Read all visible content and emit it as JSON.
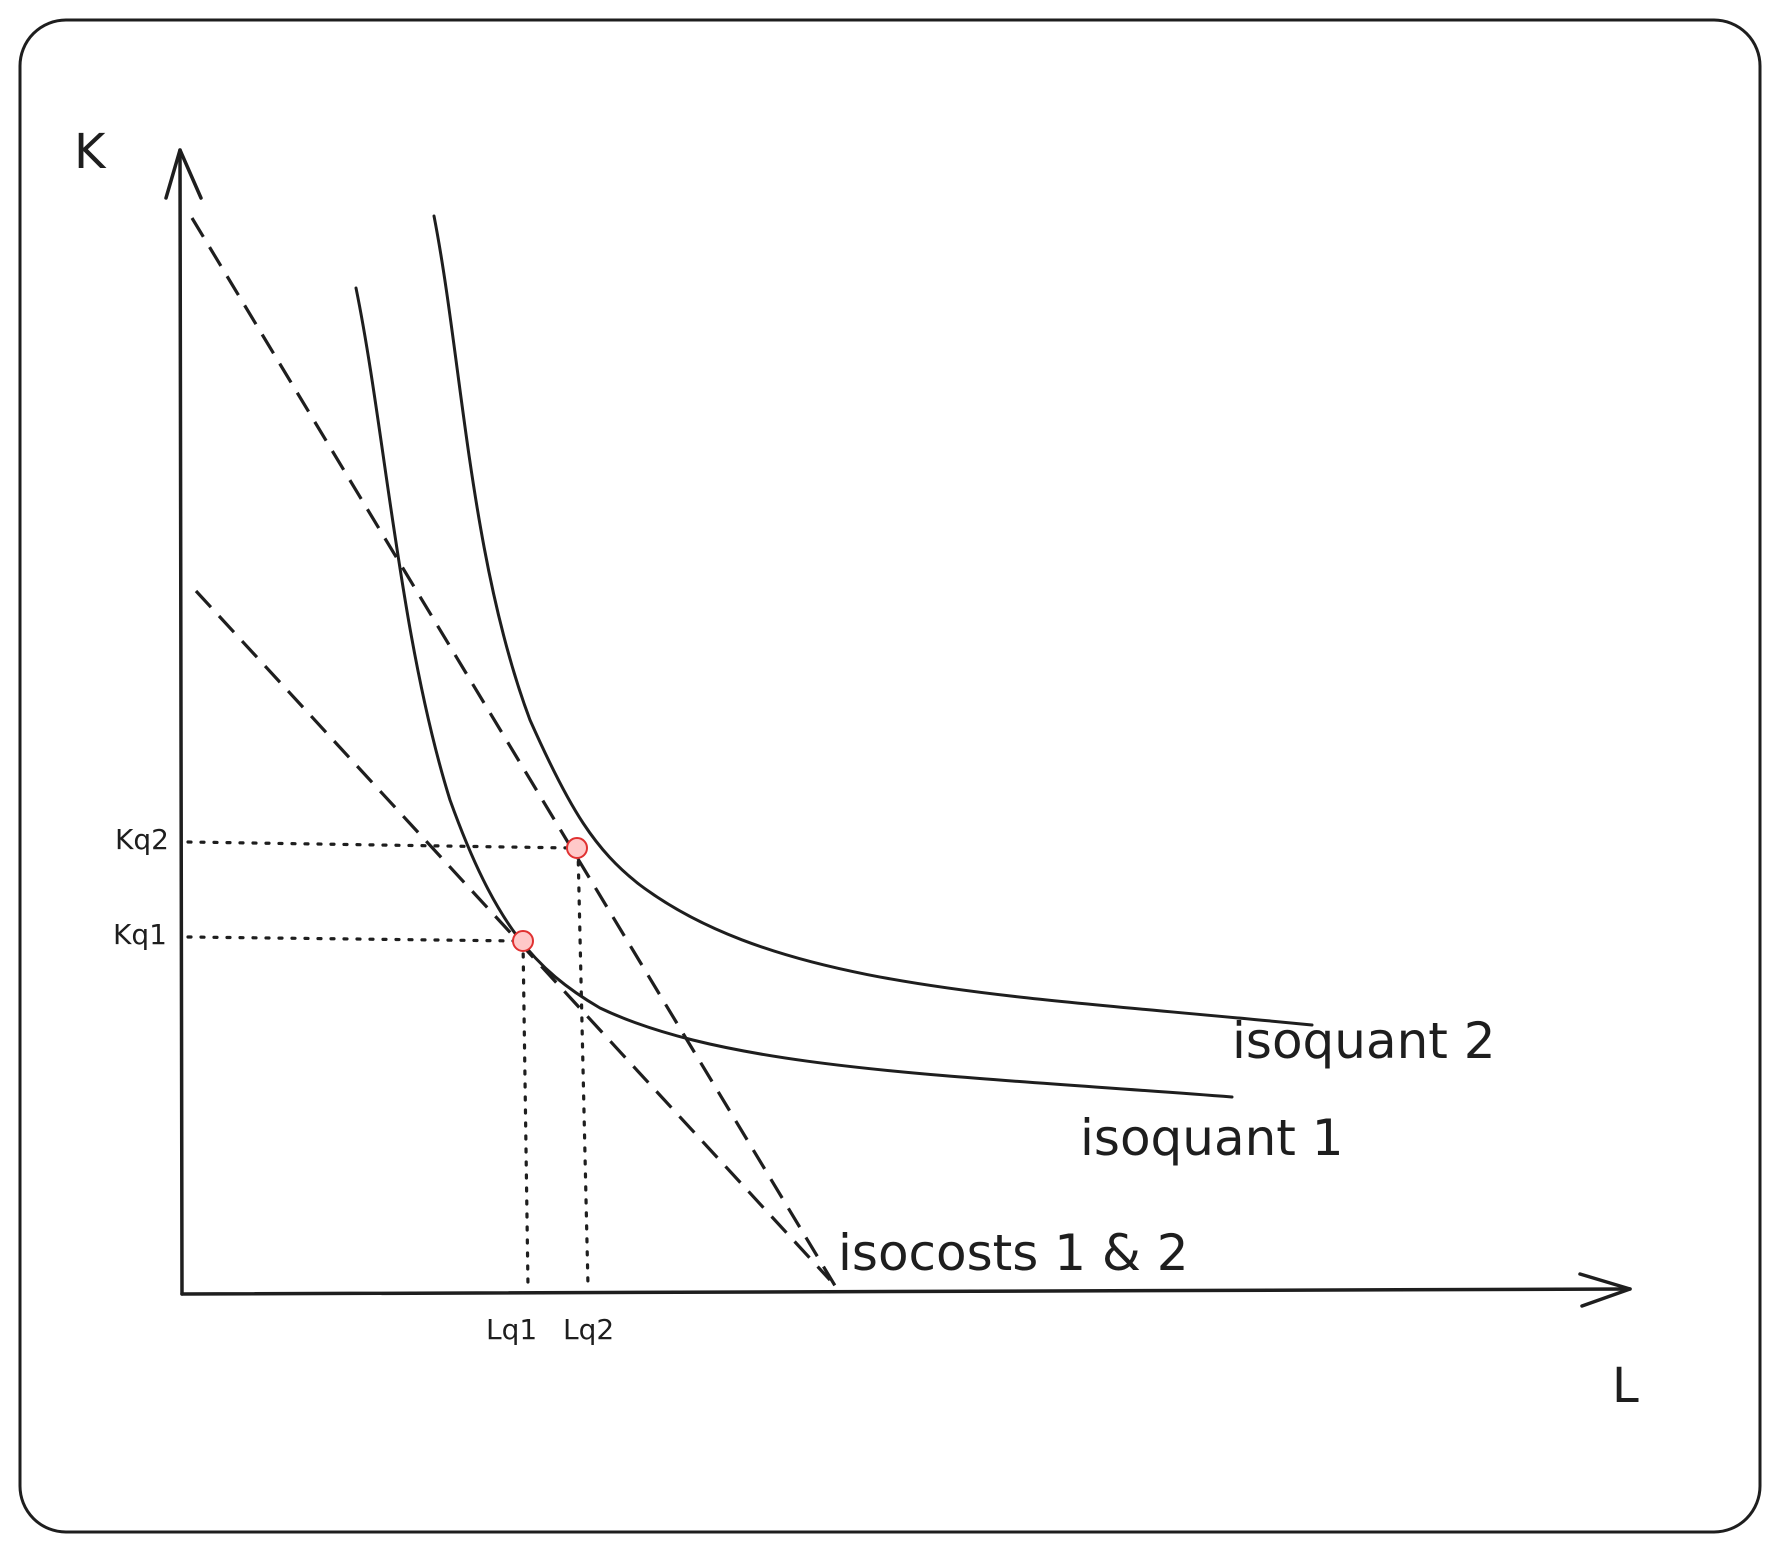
{
  "axes": {
    "y_title": "K",
    "x_title": "L"
  },
  "ticks": {
    "kq2": "Kq2",
    "kq1": "Kq1",
    "lq1": "Lq1",
    "lq2": "Lq2"
  },
  "labels": {
    "isoquant_2": "isoquant 2",
    "isoquant_1": "isoquant 1",
    "isocosts": "isocosts 1 & 2"
  },
  "colors": {
    "line": "#1e1e1e",
    "point_fill": "#ffc9c9",
    "point_stroke": "#e03131"
  }
}
